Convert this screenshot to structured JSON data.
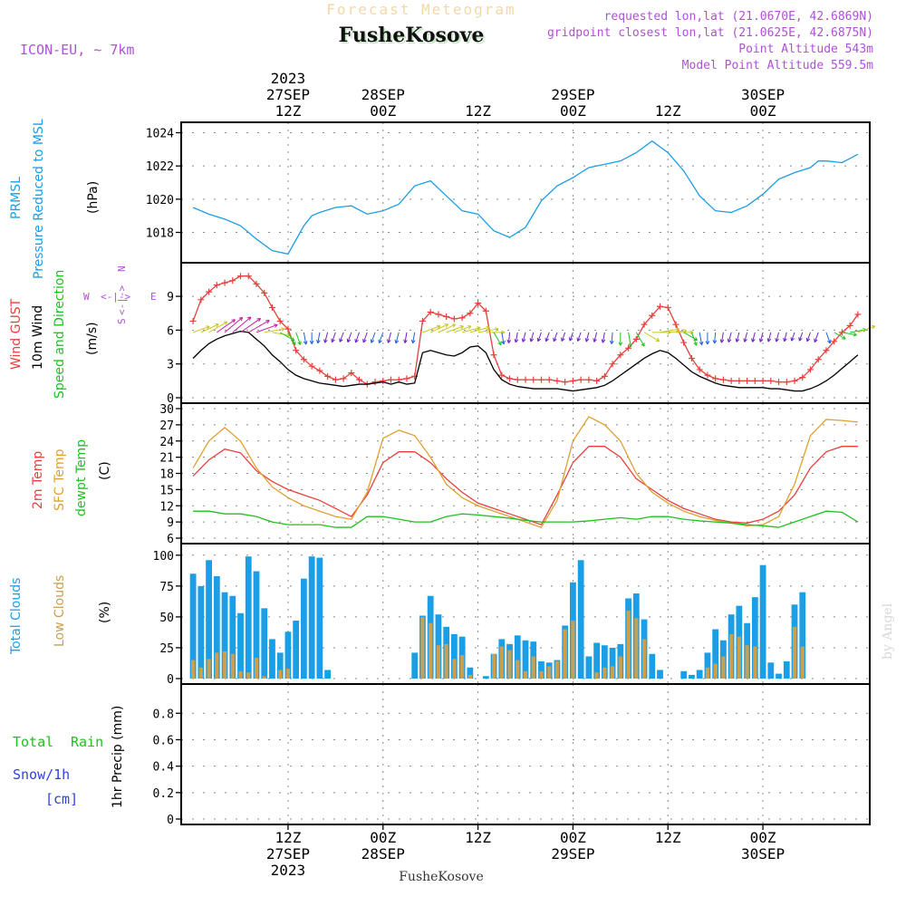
{
  "header": {
    "subtitle": "Forecast Meteogram",
    "station": "FusheKosove",
    "model": "ICON-EU, ~ 7km",
    "requested": "requested lon,lat (21.0670E, 42.6869N)",
    "gridpoint": "gridpoint closest lon,lat (21.0625E, 42.6875N)",
    "altitude": "Point Altitude 543m",
    "model_altitude": "Model Point Altitude 559.5m"
  },
  "time_axis": {
    "top_labels": [
      {
        "hour": 12,
        "l1": "2023",
        "l2": "27SEP",
        "l3": "12Z"
      },
      {
        "hour": 24,
        "l2": "28SEP",
        "l3": "00Z"
      },
      {
        "hour": 36,
        "l3": "12Z"
      },
      {
        "hour": 48,
        "l2": "29SEP",
        "l3": "00Z"
      },
      {
        "hour": 60,
        "l3": "12Z"
      },
      {
        "hour": 72,
        "l2": "30SEP",
        "l3": "00Z"
      }
    ],
    "bottom_labels": [
      {
        "hour": 12,
        "l1": "12Z",
        "l2": "27SEP",
        "l3": "2023"
      },
      {
        "hour": 24,
        "l1": "00Z",
        "l2": "28SEP"
      },
      {
        "hour": 36,
        "l1": "12Z"
      },
      {
        "hour": 48,
        "l1": "00Z",
        "l2": "29SEP"
      },
      {
        "hour": 60,
        "l1": "12Z"
      },
      {
        "hour": 72,
        "l1": "00Z",
        "l2": "30SEP"
      }
    ],
    "footer_station": "FusheKosove"
  },
  "colors": {
    "pressure": "#1a9ee6",
    "gust": "#e8403c",
    "wind": "#000000",
    "temp": "#e8403c",
    "sfc": "#e0a030",
    "dew": "#20c020",
    "total_cloud": "#1a9ee6",
    "low_cloud": "#c8a050",
    "rain": "#20c020",
    "snow": "#3040e0",
    "purple": "#b050d8"
  },
  "panel_labels": {
    "p1": {
      "a": "PRMSL",
      "b": "Pressure Reduced to MSL",
      "unit": "(hPa)"
    },
    "p2": {
      "a": "Wind GUST",
      "b": "10m Wind",
      "c": "Speed and Direction",
      "unit": "(m/s)"
    },
    "p3": {
      "a": "2m Temp",
      "b": "SFC Temp",
      "c": "dewpt Temp",
      "unit": "(C)"
    },
    "p4": {
      "a": "Total Clouds",
      "b": "Low Clouds",
      "unit": "(%)"
    },
    "p5": {
      "a": "Total",
      "b": "Rain",
      "c": "Snow/1h",
      "d": "[cm]",
      "unit": "1hr Precip (mm)"
    }
  },
  "compass": {
    "n": "N",
    "s": "S",
    "w": "W",
    "e": "E"
  },
  "watermark": "by Angel",
  "chart_data": [
    {
      "type": "line",
      "title": "PRMSL Pressure Reduced to MSL",
      "ylabel": "(hPa)",
      "ylim": [
        1016.5,
        1024.3
      ],
      "yticks": [
        1018,
        1020,
        1022,
        1024
      ],
      "x_hours": [
        0,
        2,
        4,
        6,
        8,
        10,
        12,
        14,
        15,
        16,
        18,
        20,
        22,
        24,
        26,
        28,
        30,
        32,
        34,
        36,
        38,
        40,
        42,
        44,
        46,
        48,
        50,
        52,
        54,
        56,
        58,
        60,
        62,
        64,
        66,
        68,
        70,
        72,
        74,
        76,
        78,
        79,
        80,
        82,
        84
      ],
      "series": [
        {
          "name": "PRMSL",
          "values": [
            1019.5,
            1019.1,
            1018.8,
            1018.4,
            1017.6,
            1016.9,
            1016.7,
            1018.4,
            1019.0,
            1019.2,
            1019.5,
            1019.6,
            1019.1,
            1019.3,
            1019.7,
            1020.8,
            1021.1,
            1020.2,
            1019.3,
            1019.1,
            1018.1,
            1017.7,
            1018.3,
            1019.9,
            1020.8,
            1021.3,
            1021.9,
            1022.1,
            1022.3,
            1022.8,
            1023.5,
            1022.8,
            1021.7,
            1020.2,
            1019.3,
            1019.2,
            1019.6,
            1020.3,
            1021.2,
            1021.6,
            1021.9,
            1022.3,
            1022.3,
            1022.2,
            1022.7
          ]
        }
      ]
    },
    {
      "type": "line",
      "title": "Wind GUST / 10m Wind Speed and Direction",
      "ylabel": "(m/s)",
      "ylim": [
        0,
        11.5
      ],
      "yticks": [
        0,
        3,
        6,
        9
      ],
      "x_hours": [
        0,
        1,
        2,
        3,
        4,
        5,
        6,
        7,
        8,
        9,
        10,
        11,
        12,
        13,
        14,
        15,
        16,
        17,
        18,
        19,
        20,
        21,
        22,
        23,
        24,
        25,
        26,
        27,
        28,
        29,
        30,
        31,
        32,
        33,
        34,
        35,
        36,
        37,
        38,
        39,
        40,
        41,
        42,
        43,
        44,
        45,
        46,
        47,
        48,
        49,
        50,
        51,
        52,
        53,
        54,
        55,
        56,
        57,
        58,
        59,
        60,
        61,
        62,
        63,
        64,
        65,
        66,
        67,
        68,
        69,
        70,
        71,
        72,
        73,
        74,
        75,
        76,
        77,
        78,
        79,
        80,
        81,
        82,
        83,
        84
      ],
      "series": [
        {
          "name": "Wind GUST",
          "values": [
            6.8,
            8.7,
            9.4,
            10.0,
            10.2,
            10.4,
            10.8,
            10.8,
            10.1,
            9.3,
            8.0,
            6.8,
            6.1,
            4.2,
            3.4,
            2.8,
            2.4,
            1.9,
            1.6,
            1.7,
            2.2,
            1.6,
            1.2,
            1.4,
            1.5,
            1.6,
            1.6,
            1.7,
            1.9,
            6.8,
            7.6,
            7.4,
            7.2,
            7.0,
            7.1,
            7.5,
            8.4,
            7.7,
            3.8,
            2.0,
            1.7,
            1.6,
            1.6,
            1.6,
            1.6,
            1.6,
            1.5,
            1.4,
            1.5,
            1.6,
            1.6,
            1.5,
            1.9,
            3.0,
            3.8,
            4.4,
            5.2,
            6.5,
            7.3,
            8.1,
            8.0,
            6.5,
            4.9,
            3.5,
            2.5,
            2.0,
            1.7,
            1.6,
            1.5,
            1.5,
            1.5,
            1.5,
            1.5,
            1.5,
            1.4,
            1.4,
            1.5,
            1.8,
            2.5,
            3.4,
            4.2,
            5.0,
            5.8,
            6.4,
            7.4
          ]
        },
        {
          "name": "10m Wind",
          "values": [
            3.5,
            4.2,
            4.8,
            5.2,
            5.5,
            5.7,
            5.9,
            5.8,
            5.2,
            4.6,
            3.8,
            3.2,
            2.5,
            2.0,
            1.7,
            1.5,
            1.3,
            1.2,
            1.1,
            1.0,
            1.1,
            1.2,
            1.2,
            1.3,
            1.4,
            1.2,
            1.4,
            1.2,
            1.3,
            4.0,
            4.2,
            4.0,
            3.8,
            3.7,
            4.0,
            4.5,
            4.6,
            4.0,
            2.5,
            1.6,
            1.2,
            1.0,
            0.9,
            0.8,
            0.8,
            0.8,
            0.8,
            0.7,
            0.6,
            0.7,
            0.8,
            0.9,
            1.1,
            1.5,
            2.0,
            2.5,
            3.0,
            3.5,
            3.9,
            4.2,
            4.0,
            3.5,
            2.9,
            2.3,
            1.9,
            1.6,
            1.3,
            1.1,
            1.0,
            0.9,
            0.9,
            0.9,
            0.9,
            0.8,
            0.8,
            0.7,
            0.6,
            0.6,
            0.8,
            1.1,
            1.5,
            2.0,
            2.6,
            3.2,
            3.8
          ]
        }
      ],
      "wind_dir_deg": [
        250,
        245,
        240,
        235,
        230,
        230,
        235,
        240,
        250,
        260,
        280,
        300,
        330,
        340,
        350,
        0,
        10,
        15,
        20,
        20,
        20,
        20,
        20,
        20,
        20,
        15,
        15,
        10,
        10,
        250,
        245,
        245,
        250,
        250,
        255,
        255,
        260,
        270,
        330,
        350,
        5,
        10,
        15,
        15,
        20,
        20,
        20,
        20,
        20,
        20,
        15,
        15,
        10,
        5,
        0,
        350,
        330,
        300,
        270,
        260,
        265,
        270,
        300,
        340,
        350,
        0,
        5,
        10,
        15,
        15,
        15,
        15,
        15,
        15,
        15,
        15,
        20,
        20,
        20,
        20,
        340,
        300,
        280,
        260,
        250
      ]
    },
    {
      "type": "line",
      "title": "2m Temp / SFC Temp / dewpt Temp",
      "ylabel": "(C)",
      "ylim": [
        6,
        30
      ],
      "yticks": [
        6,
        9,
        12,
        15,
        18,
        21,
        24,
        27,
        30
      ],
      "x_hours": [
        0,
        2,
        4,
        6,
        8,
        10,
        12,
        14,
        16,
        18,
        20,
        22,
        24,
        26,
        28,
        30,
        32,
        34,
        36,
        38,
        40,
        42,
        44,
        46,
        48,
        50,
        52,
        54,
        56,
        58,
        60,
        62,
        64,
        66,
        68,
        70,
        72,
        74,
        76,
        78,
        80,
        82,
        84
      ],
      "series": [
        {
          "name": "2m Temp",
          "values": [
            17.5,
            20.5,
            22.5,
            21.8,
            18.5,
            16.5,
            15,
            14,
            13,
            11.5,
            10,
            14,
            20,
            22,
            22,
            20,
            17,
            14.5,
            12.5,
            11.5,
            10.5,
            9.5,
            8.5,
            14,
            20,
            23,
            23,
            21,
            17,
            15,
            13,
            11.5,
            10.5,
            9.5,
            9,
            8.8,
            9.5,
            11,
            14,
            19,
            22,
            23,
            23
          ]
        },
        {
          "name": "SFC Temp",
          "values": [
            19,
            24,
            26.5,
            24,
            19,
            15.5,
            13.5,
            12,
            11,
            10,
            9.5,
            14.5,
            24.5,
            26,
            25,
            21,
            16,
            13.5,
            12,
            11,
            10,
            9,
            8,
            13,
            24,
            28.5,
            27,
            24,
            18,
            14.5,
            12.5,
            11,
            10,
            9.3,
            8.8,
            8.3,
            8.5,
            10,
            16,
            25,
            28,
            27.8,
            27.5
          ]
        },
        {
          "name": "dewpt Temp",
          "values": [
            11,
            11,
            10.5,
            10.5,
            10,
            9,
            8.5,
            8.5,
            8.5,
            8,
            8,
            10,
            10,
            9.5,
            9,
            9,
            10,
            10.5,
            10.3,
            10,
            9.7,
            9.3,
            9,
            9,
            9,
            9.2,
            9.5,
            9.8,
            9.5,
            10,
            10,
            9.5,
            9.2,
            9,
            8.8,
            8.5,
            8.3,
            8,
            9,
            10,
            11,
            10.8,
            9
          ]
        }
      ]
    },
    {
      "type": "bar",
      "title": "Total Clouds / Low Clouds",
      "ylabel": "(%)",
      "ylim": [
        0,
        105
      ],
      "yticks": [
        0,
        25,
        50,
        75,
        100
      ],
      "x_hours": [
        0,
        1,
        2,
        3,
        4,
        5,
        6,
        7,
        8,
        9,
        10,
        11,
        12,
        13,
        14,
        15,
        16,
        17,
        18,
        19,
        20,
        21,
        22,
        23,
        24,
        25,
        26,
        27,
        28,
        29,
        30,
        31,
        32,
        33,
        34,
        35,
        36,
        37,
        38,
        39,
        40,
        41,
        42,
        43,
        44,
        45,
        46,
        47,
        48,
        49,
        50,
        51,
        52,
        53,
        54,
        55,
        56,
        57,
        58,
        59,
        60,
        61,
        62,
        63,
        64,
        65,
        66,
        67,
        68,
        69,
        70,
        71,
        72,
        73,
        74,
        75,
        76,
        77,
        78,
        79,
        80,
        81,
        82,
        83,
        84
      ],
      "series": [
        {
          "name": "Total Clouds",
          "values": [
            85,
            75,
            96,
            83,
            70,
            67,
            53,
            99,
            87,
            57,
            32,
            21,
            38,
            47,
            81,
            99,
            98,
            7,
            0,
            0,
            0,
            0,
            0,
            0,
            0,
            0,
            0,
            0,
            21,
            51,
            67,
            52,
            42,
            36,
            34,
            9,
            0,
            2,
            20,
            32,
            28,
            35,
            31,
            30,
            14,
            13,
            15,
            43,
            78,
            96,
            18,
            29,
            27,
            25,
            28,
            65,
            69,
            48,
            20,
            7,
            0,
            0,
            6,
            3,
            7,
            21,
            40,
            31,
            52,
            59,
            45,
            66,
            92,
            13,
            4,
            14,
            60,
            70,
            0,
            0,
            0,
            0,
            0,
            0,
            0
          ]
        },
        {
          "name": "Low Clouds",
          "values": [
            15,
            9,
            16,
            21,
            22,
            20,
            6,
            5,
            17,
            2,
            0,
            7,
            8,
            0,
            0,
            0,
            0,
            0,
            0,
            0,
            0,
            0,
            0,
            0,
            0,
            0,
            0,
            0,
            0,
            50,
            45,
            27,
            28,
            16,
            19,
            3,
            0,
            0,
            20,
            26,
            23,
            15,
            6,
            18,
            6,
            10,
            14,
            40,
            47,
            0,
            0,
            5,
            9,
            10,
            18,
            55,
            49,
            32,
            0,
            0,
            0,
            0,
            0,
            0,
            0,
            9,
            12,
            18,
            36,
            34,
            27,
            26,
            0,
            0,
            0,
            0,
            42,
            26,
            0,
            0,
            0,
            0,
            0,
            0,
            0
          ]
        }
      ]
    },
    {
      "type": "bar",
      "title": "1hr Precip",
      "ylabel": "1hr Precip (mm)",
      "ylim": [
        0,
        0.98
      ],
      "yticks": [
        0,
        0.2,
        0.4,
        0.6,
        0.8
      ],
      "series": [
        {
          "name": "Total Rain",
          "values": []
        },
        {
          "name": "Snow/1h [cm]",
          "values": []
        }
      ]
    }
  ]
}
